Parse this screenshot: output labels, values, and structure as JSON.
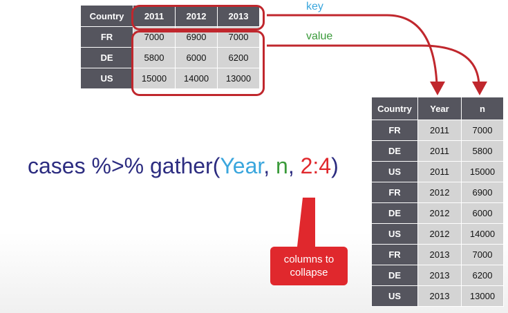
{
  "wide_table": {
    "headers": [
      "Country",
      "2011",
      "2012",
      "2013"
    ],
    "rows": [
      [
        "FR",
        "7000",
        "6900",
        "7000"
      ],
      [
        "DE",
        "5800",
        "6000",
        "6200"
      ],
      [
        "US",
        "15000",
        "14000",
        "13000"
      ]
    ]
  },
  "long_table": {
    "headers": [
      "Country",
      "Year",
      "n"
    ],
    "rows": [
      [
        "FR",
        "2011",
        "7000"
      ],
      [
        "DE",
        "2011",
        "5800"
      ],
      [
        "US",
        "2011",
        "15000"
      ],
      [
        "FR",
        "2012",
        "6900"
      ],
      [
        "DE",
        "2012",
        "6000"
      ],
      [
        "US",
        "2012",
        "14000"
      ],
      [
        "FR",
        "2013",
        "7000"
      ],
      [
        "DE",
        "2013",
        "6200"
      ],
      [
        "US",
        "2013",
        "13000"
      ]
    ]
  },
  "labels": {
    "key": "key",
    "value": "value"
  },
  "code": {
    "prefix": "cases %>% gather(",
    "arg_key": "Year",
    "sep1": ", ",
    "arg_value": "n",
    "sep2": ", ",
    "arg_cols": "2:4",
    "suffix": ")"
  },
  "callout": {
    "line1": "columns to",
    "line2": "collapse"
  },
  "colors": {
    "header_bg": "#55555e",
    "cell_bg": "#d4d4d4",
    "highlight": "#c0272d",
    "key": "#3aa6dd",
    "value": "#3a9a3a",
    "code": "#2c2c80",
    "callout_bg": "#e0282d"
  }
}
